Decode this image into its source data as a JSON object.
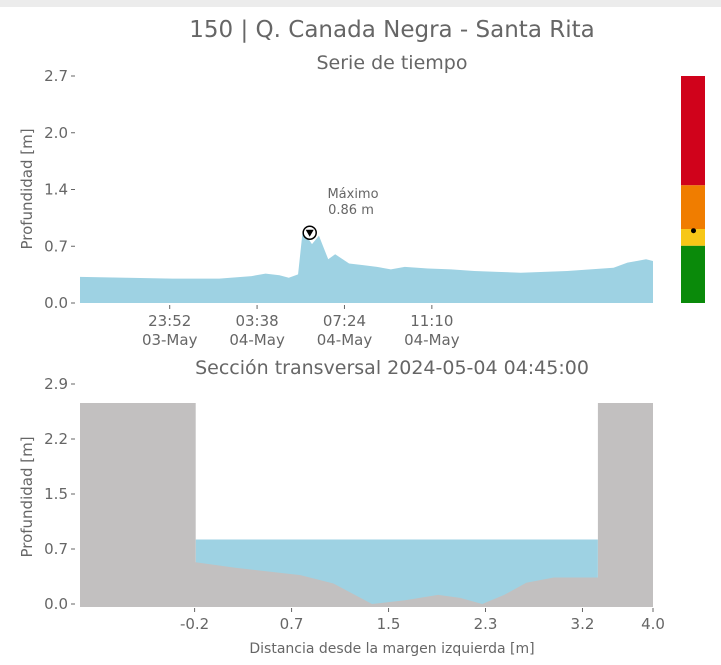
{
  "title": "150 | Q. Canada Negra - Santa Rita",
  "colors": {
    "series_fill": "#9ed2e3",
    "terrain_fill": "#c2c0c0",
    "water_fill": "#9ed2e3",
    "level_red": "#d0021b",
    "level_orange": "#f07d00",
    "level_yellow": "#f7c717",
    "level_green": "#0a8a0a",
    "text": "#666666"
  },
  "chart_data": [
    {
      "type": "area",
      "title": "Serie de tiempo",
      "ylabel": "Profundidad [m]",
      "xlabel": "",
      "ylim": [
        0,
        2.7
      ],
      "yticks": [
        "0.0",
        "0.7",
        "1.4",
        "2.0",
        "2.7"
      ],
      "xticks": [
        {
          "line1": "23:52",
          "line2": "03-May"
        },
        {
          "line1": "03:38",
          "line2": "04-May"
        },
        {
          "line1": "07:24",
          "line2": "04-May"
        },
        {
          "line1": "11:10",
          "line2": "04-May"
        }
      ],
      "x_hours": [
        20.0,
        22.0,
        24.0,
        26.0,
        27.4,
        28.0,
        28.6,
        29.0,
        29.4,
        29.6,
        29.8,
        30.0,
        30.3,
        30.7,
        31.0,
        31.6,
        32.2,
        32.8,
        33.4,
        34.0,
        35.0,
        36.0,
        37.0,
        38.0,
        39.0,
        40.0,
        41.0,
        42.0,
        43.0,
        43.6,
        44.0,
        44.4,
        44.7
      ],
      "values": [
        0.31,
        0.3,
        0.29,
        0.29,
        0.32,
        0.35,
        0.33,
        0.3,
        0.34,
        0.86,
        0.78,
        0.7,
        0.8,
        0.52,
        0.58,
        0.47,
        0.45,
        0.43,
        0.4,
        0.43,
        0.41,
        0.4,
        0.38,
        0.37,
        0.36,
        0.37,
        0.38,
        0.4,
        0.42,
        0.48,
        0.5,
        0.52,
        0.5
      ],
      "annotation": {
        "label": "Máximo",
        "value_text": "0.86 m",
        "x_hour": 29.6,
        "value": 0.86
      }
    },
    {
      "type": "area",
      "title": "Sección transversal 2024-05-04 04:45:00",
      "ylabel": "Profundidad [m]",
      "xlabel": "Distancia desde la margen izquierda [m]",
      "ylim": [
        0,
        2.9
      ],
      "xlim": [
        -1.2,
        4.0
      ],
      "yticks": [
        "0.0",
        "0.7",
        "1.5",
        "2.2",
        "2.9"
      ],
      "xticks": [
        "-0.2",
        "0.7",
        "1.5",
        "2.3",
        "3.2",
        "4.0"
      ],
      "terrain_x": [
        -1.2,
        -0.15,
        -0.15,
        0.2,
        0.5,
        0.8,
        1.1,
        1.45,
        1.75,
        2.05,
        2.25,
        2.45,
        2.65,
        2.85,
        3.1,
        3.5,
        3.5,
        4.0
      ],
      "terrain_y": [
        2.65,
        2.65,
        0.55,
        0.48,
        0.43,
        0.38,
        0.27,
        0.0,
        0.05,
        0.12,
        0.08,
        0.0,
        0.12,
        0.28,
        0.35,
        0.35,
        2.65,
        2.65
      ],
      "water_level": 0.85,
      "water_x": [
        -0.15,
        3.5
      ]
    }
  ],
  "level_scale": {
    "bands": [
      {
        "name": "red",
        "from": 1.4,
        "to": 2.7
      },
      {
        "name": "orange",
        "from": 0.88,
        "to": 1.4
      },
      {
        "name": "yellow",
        "from": 0.68,
        "to": 0.88
      },
      {
        "name": "green",
        "from": 0.0,
        "to": 0.68
      }
    ],
    "current": 0.86
  }
}
